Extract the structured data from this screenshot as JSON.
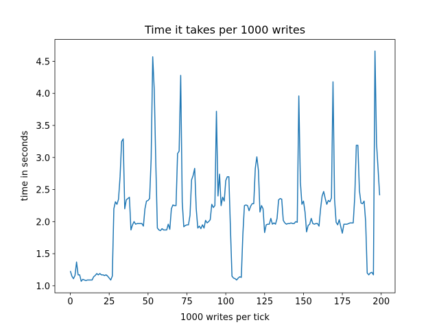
{
  "chart_data": {
    "type": "line",
    "title": "Time it takes per 1000 writes",
    "xlabel": "1000 writes per tick",
    "ylabel": "time in seconds",
    "color": "#1f77b4",
    "xlim": [
      -9.95,
      208.95
    ],
    "ylim": [
      0.89,
      4.84
    ],
    "xticks": [
      0,
      25,
      50,
      75,
      100,
      125,
      150,
      175,
      200
    ],
    "yticks": [
      {
        "value": 1.0,
        "label": "1.0"
      },
      {
        "value": 1.5,
        "label": "1.5"
      },
      {
        "value": 2.0,
        "label": "2.0"
      },
      {
        "value": 2.5,
        "label": "2.5"
      },
      {
        "value": 3.0,
        "label": "3.0"
      },
      {
        "value": 3.5,
        "label": "3.5"
      },
      {
        "value": 4.0,
        "label": "4.0"
      },
      {
        "value": 4.5,
        "label": "4.5"
      }
    ],
    "x": [
      0,
      1,
      2,
      3,
      4,
      5,
      6,
      7,
      8,
      9,
      10,
      11,
      12,
      13,
      14,
      15,
      16,
      17,
      18,
      19,
      20,
      21,
      22,
      23,
      24,
      25,
      26,
      27,
      28,
      29,
      30,
      31,
      32,
      33,
      34,
      35,
      36,
      37,
      38,
      39,
      40,
      41,
      42,
      43,
      44,
      45,
      46,
      47,
      48,
      49,
      50,
      51,
      52,
      53,
      54,
      55,
      56,
      57,
      58,
      59,
      60,
      61,
      62,
      63,
      64,
      65,
      66,
      67,
      68,
      69,
      70,
      71,
      72,
      73,
      74,
      75,
      76,
      77,
      78,
      79,
      80,
      81,
      82,
      83,
      84,
      85,
      86,
      87,
      88,
      89,
      90,
      91,
      92,
      93,
      94,
      95,
      96,
      97,
      98,
      99,
      100,
      101,
      102,
      103,
      104,
      105,
      106,
      107,
      108,
      109,
      110,
      111,
      112,
      113,
      114,
      115,
      116,
      117,
      118,
      119,
      120,
      121,
      122,
      123,
      124,
      125,
      126,
      127,
      128,
      129,
      130,
      131,
      132,
      133,
      134,
      135,
      136,
      137,
      138,
      139,
      140,
      141,
      142,
      143,
      144,
      145,
      146,
      147,
      148,
      149,
      150,
      151,
      152,
      153,
      154,
      155,
      156,
      157,
      158,
      159,
      160,
      161,
      162,
      163,
      164,
      165,
      166,
      167,
      168,
      169,
      170,
      171,
      172,
      173,
      174,
      175,
      176,
      177,
      178,
      179,
      180,
      181,
      182,
      183,
      184,
      185,
      186,
      187,
      188,
      189,
      190,
      191,
      192,
      193,
      194,
      195,
      196,
      197,
      198,
      199
    ],
    "values": [
      1.23,
      1.15,
      1.11,
      1.16,
      1.37,
      1.17,
      1.17,
      1.07,
      1.1,
      1.09,
      1.08,
      1.09,
      1.09,
      1.09,
      1.09,
      1.14,
      1.16,
      1.19,
      1.17,
      1.19,
      1.17,
      1.17,
      1.16,
      1.17,
      1.15,
      1.12,
      1.09,
      1.15,
      2.2,
      2.31,
      2.27,
      2.35,
      2.7,
      3.25,
      3.29,
      2.2,
      2.34,
      2.36,
      2.38,
      1.87,
      1.95,
      2.0,
      1.96,
      1.97,
      1.97,
      1.97,
      1.97,
      1.93,
      2.2,
      2.32,
      2.33,
      2.36,
      2.98,
      4.57,
      4.05,
      2.9,
      1.9,
      1.87,
      1.86,
      1.89,
      1.87,
      1.87,
      1.87,
      1.96,
      1.88,
      2.2,
      2.26,
      2.25,
      2.25,
      3.06,
      3.1,
      4.28,
      2.3,
      1.92,
      1.94,
      1.95,
      1.95,
      2.1,
      2.65,
      2.72,
      2.83,
      2.2,
      1.9,
      1.93,
      1.89,
      1.95,
      1.9,
      2.02,
      1.98,
      2.0,
      2.03,
      2.27,
      2.22,
      2.25,
      3.72,
      2.4,
      2.74,
      2.25,
      2.38,
      2.32,
      2.64,
      2.7,
      2.7,
      1.9,
      1.15,
      1.12,
      1.11,
      1.09,
      1.12,
      1.14,
      1.13,
      1.8,
      2.25,
      2.26,
      2.25,
      2.17,
      2.24,
      2.28,
      2.28,
      2.83,
      3.01,
      2.8,
      2.15,
      2.25,
      2.2,
      1.83,
      1.95,
      1.96,
      1.96,
      2.05,
      1.96,
      1.98,
      1.96,
      2.05,
      2.34,
      2.36,
      2.35,
      2.02,
      1.98,
      1.96,
      1.97,
      1.97,
      1.98,
      1.97,
      1.97,
      2.0,
      1.99,
      3.96,
      2.62,
      2.27,
      2.32,
      2.15,
      1.84,
      1.94,
      1.96,
      2.05,
      1.97,
      1.96,
      1.97,
      1.97,
      1.93,
      2.2,
      2.4,
      2.47,
      2.36,
      2.27,
      2.33,
      2.31,
      2.37,
      4.18,
      2.35,
      1.99,
      1.95,
      2.03,
      1.92,
      1.82,
      1.96,
      1.96,
      1.96,
      1.97,
      1.98,
      1.98,
      1.98,
      2.39,
      3.19,
      3.19,
      2.48,
      2.29,
      2.28,
      2.32,
      2.0,
      1.2,
      1.17,
      1.2,
      1.21,
      1.17,
      4.66,
      3.22,
      2.82,
      2.41
    ]
  }
}
